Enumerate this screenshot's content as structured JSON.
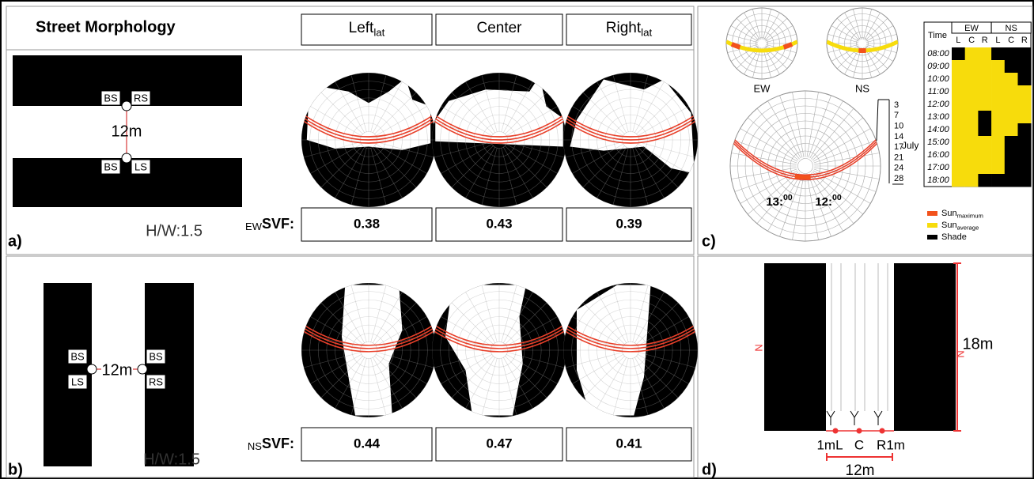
{
  "panel_a": {
    "label": "a)",
    "title": "Street Morphology",
    "columns": [
      {
        "text": "Left",
        "sub": "lat"
      },
      {
        "text": "Center"
      },
      {
        "text": "Right",
        "sub": "lat"
      }
    ],
    "plan": {
      "top_tags": [
        "BS",
        "RS"
      ],
      "bottom_tags": [
        "BS",
        "LS"
      ],
      "width": "12m",
      "ratio": "H/W:1.5"
    },
    "svf": {
      "prefix": "EW",
      "label": "SVF:",
      "values": [
        0.38,
        0.43,
        0.39
      ]
    }
  },
  "panel_b": {
    "label": "b)",
    "plan": {
      "left_tags": [
        "BS",
        "LS"
      ],
      "right_tags": [
        "BS",
        "RS"
      ],
      "width": "12m",
      "ratio": "H/W:1.5"
    },
    "svf": {
      "prefix": "NS",
      "label": "SVF:",
      "values": [
        0.44,
        0.47,
        0.41
      ]
    }
  },
  "panel_c": {
    "label": "c)",
    "polar_labels": [
      "EW",
      "NS"
    ],
    "dates": [
      "3",
      "7",
      "10",
      "14",
      "17",
      "21",
      "24",
      "28"
    ],
    "month": "July",
    "times": [
      {
        "text": "13:",
        "sup": "00"
      },
      {
        "text": "12:",
        "sup": "00"
      }
    ],
    "legend": [
      {
        "text": "Sun",
        "sub": "maximum",
        "color": "#f2521c"
      },
      {
        "text": "Sun",
        "sub": "average",
        "color": "#f7dc0c"
      },
      {
        "text": "Shade",
        "color": "#000000"
      }
    ],
    "table": {
      "time_header": "Time",
      "groups": [
        {
          "name": "EW",
          "positions": [
            "L",
            "C",
            "R"
          ]
        },
        {
          "name": "NS",
          "positions": [
            "L",
            "C",
            "R"
          ]
        }
      ],
      "rows": [
        {
          "time": "08:00",
          "sun": [
            0,
            1,
            1,
            0,
            0,
            0
          ]
        },
        {
          "time": "09:00",
          "sun": [
            1,
            1,
            1,
            1,
            0,
            0
          ]
        },
        {
          "time": "10:00",
          "sun": [
            1,
            1,
            1,
            1,
            1,
            0
          ]
        },
        {
          "time": "11:00",
          "sun": [
            1,
            1,
            1,
            1,
            1,
            1
          ]
        },
        {
          "time": "12:00",
          "sun": [
            1,
            1,
            1,
            1,
            1,
            1
          ]
        },
        {
          "time": "13:00",
          "sun": [
            1,
            1,
            0,
            1,
            1,
            1
          ]
        },
        {
          "time": "14:00",
          "sun": [
            1,
            1,
            0,
            1,
            1,
            0
          ]
        },
        {
          "time": "15:00",
          "sun": [
            1,
            1,
            1,
            1,
            0,
            0
          ]
        },
        {
          "time": "16:00",
          "sun": [
            1,
            1,
            1,
            1,
            0,
            0
          ]
        },
        {
          "time": "17:00",
          "sun": [
            1,
            1,
            1,
            1,
            0,
            0
          ]
        },
        {
          "time": "18:00",
          "sun": [
            1,
            1,
            0,
            0,
            0,
            0
          ]
        }
      ]
    }
  },
  "panel_d": {
    "label": "d)",
    "height": "18m",
    "points": [
      "1mL",
      "C",
      "R1m"
    ],
    "width": "12m",
    "north": [
      "N",
      "N"
    ]
  }
}
